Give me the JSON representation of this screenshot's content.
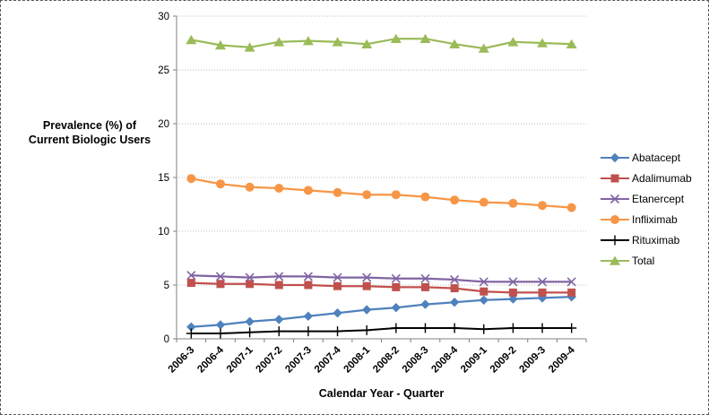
{
  "chart_data": {
    "type": "line",
    "title": "",
    "xlabel": "Calendar Year - Quarter",
    "ylabel": "Prevalence (%) of Current Biologic Users",
    "ylabel_line1": "Prevalence (%) of",
    "ylabel_line2": "Current Biologic Users",
    "ylim": [
      0,
      30
    ],
    "yticks": [
      0,
      5,
      10,
      15,
      20,
      25,
      30
    ],
    "grid": true,
    "legend_position": "right",
    "categories": [
      "2006-3",
      "2006-4",
      "2007-1",
      "2007-2",
      "2007-3",
      "2007-4",
      "2008-1",
      "2008-2",
      "2008-3",
      "2008-4",
      "2009-1",
      "2009-2",
      "2009-3",
      "2009-4"
    ],
    "series": [
      {
        "name": "Abatacept",
        "color": "#4F81BD",
        "marker": "diamond",
        "values": [
          1.1,
          1.3,
          1.6,
          1.8,
          2.1,
          2.4,
          2.7,
          2.9,
          3.2,
          3.4,
          3.6,
          3.7,
          3.8,
          3.9
        ]
      },
      {
        "name": "Adalimumab",
        "color": "#C0504D",
        "marker": "square",
        "values": [
          5.2,
          5.1,
          5.1,
          5.0,
          5.0,
          4.9,
          4.9,
          4.8,
          4.8,
          4.7,
          4.4,
          4.3,
          4.3,
          4.3
        ]
      },
      {
        "name": "Etanercept",
        "color": "#8064A2",
        "marker": "x",
        "values": [
          5.9,
          5.8,
          5.7,
          5.8,
          5.8,
          5.7,
          5.7,
          5.6,
          5.6,
          5.5,
          5.3,
          5.3,
          5.3,
          5.3
        ]
      },
      {
        "name": "Infliximab",
        "color": "#F79646",
        "marker": "circle",
        "values": [
          14.9,
          14.4,
          14.1,
          14.0,
          13.8,
          13.6,
          13.4,
          13.4,
          13.2,
          12.9,
          12.7,
          12.6,
          12.4,
          12.2
        ]
      },
      {
        "name": "Rituximab",
        "color": "#000000",
        "marker": "plus",
        "values": [
          0.5,
          0.5,
          0.6,
          0.7,
          0.7,
          0.7,
          0.8,
          1.0,
          1.0,
          1.0,
          0.9,
          1.0,
          1.0,
          1.0
        ]
      },
      {
        "name": "Total",
        "color": "#9BBB59",
        "marker": "triangle",
        "values": [
          27.8,
          27.3,
          27.1,
          27.6,
          27.7,
          27.6,
          27.4,
          27.9,
          27.9,
          27.4,
          27.0,
          27.6,
          27.5,
          27.4
        ]
      }
    ]
  }
}
